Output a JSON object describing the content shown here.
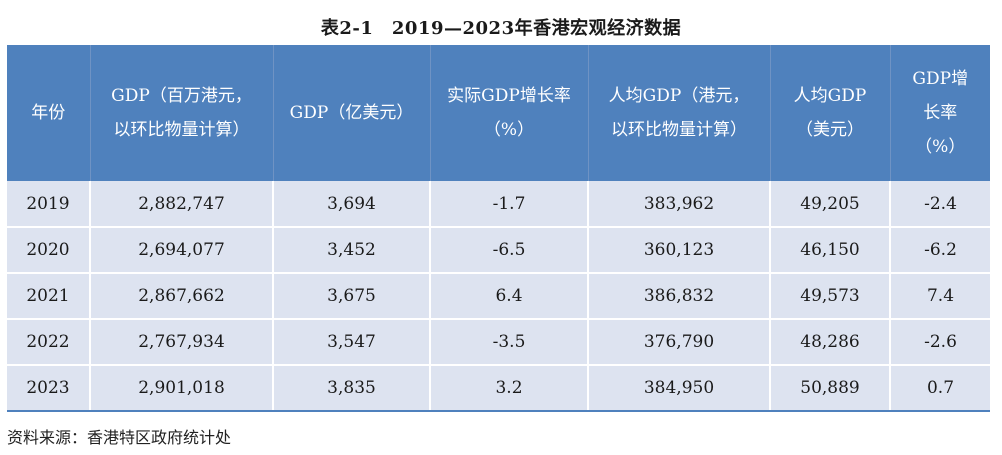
{
  "title": "表2-1　2019—2023年香港宏观经济数据",
  "table": {
    "headers": [
      "年份",
      "GDP（百万港元，以环比物量计算）",
      "GDP（亿美元）",
      "实际GDP增长率（%）",
      "人均GDP（港元，以环比物量计算）",
      "人均GDP（美元）",
      "GDP增长率（%）"
    ],
    "rows": [
      [
        "2019",
        "2,882,747",
        "3,694",
        "-1.7",
        "383,962",
        "49,205",
        "-2.4"
      ],
      [
        "2020",
        "2,694,077",
        "3,452",
        "-6.5",
        "360,123",
        "46,150",
        "-6.2"
      ],
      [
        "2021",
        "2,867,662",
        "3,675",
        "6.4",
        "386,832",
        "49,573",
        "7.4"
      ],
      [
        "2022",
        "2,767,934",
        "3,547",
        "-3.5",
        "376,790",
        "48,286",
        "-2.6"
      ],
      [
        "2023",
        "2,901,018",
        "3,835",
        "3.2",
        "384,950",
        "50,889",
        "0.7"
      ]
    ]
  },
  "source": "资料来源：香港特区政府统计处",
  "colors": {
    "header_bg": "#4f81bd",
    "row_bg": "#dde3f0",
    "header_text": "#ffffff"
  }
}
